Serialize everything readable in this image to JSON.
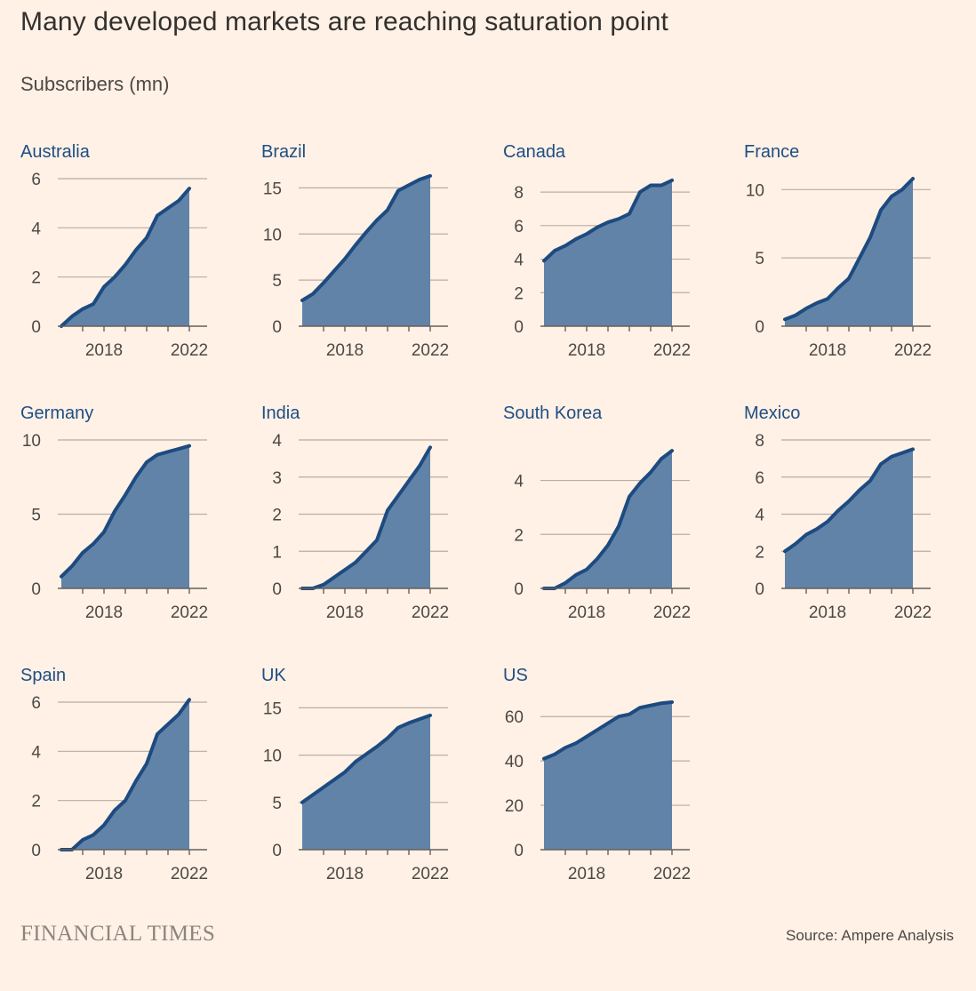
{
  "title": "Many developed markets are reaching saturation point",
  "subtitle": "Subscribers (mn)",
  "source": "Source: Ampere Analysis",
  "logo": "FINANCIAL TIMES",
  "colors": {
    "background": "#fff1e5",
    "area": "#6283a8",
    "line": "#1d4b80",
    "panel_title": "#1f4e86",
    "grid": "#b8ada5"
  },
  "chart_data": [
    {
      "type": "area",
      "title": "Australia",
      "x_ticks": [
        "2018",
        "2022"
      ],
      "y_ticks": [
        0,
        2,
        4,
        6
      ],
      "ylim": [
        0,
        6
      ],
      "x": [
        2016.0,
        2016.5,
        2017.0,
        2017.5,
        2018.0,
        2018.5,
        2019.0,
        2019.5,
        2020.0,
        2020.5,
        2021.0,
        2021.5,
        2022.0
      ],
      "values": [
        0.0,
        0.4,
        0.7,
        0.9,
        1.6,
        2.0,
        2.5,
        3.1,
        3.6,
        4.5,
        4.8,
        5.1,
        5.6
      ]
    },
    {
      "type": "area",
      "title": "Brazil",
      "x_ticks": [
        "2018",
        "2022"
      ],
      "y_ticks": [
        0,
        5,
        10,
        15
      ],
      "ylim": [
        0,
        16
      ],
      "x": [
        2016.0,
        2016.5,
        2017.0,
        2017.5,
        2018.0,
        2018.5,
        2019.0,
        2019.5,
        2020.0,
        2020.5,
        2021.0,
        2021.5,
        2022.0
      ],
      "values": [
        2.8,
        3.5,
        4.7,
        6.0,
        7.3,
        8.8,
        10.2,
        11.5,
        12.6,
        14.7,
        15.3,
        15.9,
        16.3
      ]
    },
    {
      "type": "area",
      "title": "Canada",
      "x_ticks": [
        "2018",
        "2022"
      ],
      "y_ticks": [
        0,
        2,
        4,
        6,
        8
      ],
      "ylim": [
        0,
        8.8
      ],
      "x": [
        2016.0,
        2016.5,
        2017.0,
        2017.5,
        2018.0,
        2018.5,
        2019.0,
        2019.5,
        2020.0,
        2020.5,
        2021.0,
        2021.5,
        2022.0
      ],
      "values": [
        3.9,
        4.5,
        4.8,
        5.2,
        5.5,
        5.9,
        6.2,
        6.4,
        6.7,
        8.0,
        8.4,
        8.4,
        8.7
      ]
    },
    {
      "type": "area",
      "title": "France",
      "x_ticks": [
        "2018",
        "2022"
      ],
      "y_ticks": [
        0,
        5,
        10
      ],
      "ylim": [
        0,
        10.8
      ],
      "x": [
        2016.0,
        2016.5,
        2017.0,
        2017.5,
        2018.0,
        2018.5,
        2019.0,
        2019.5,
        2020.0,
        2020.5,
        2021.0,
        2021.5,
        2022.0
      ],
      "values": [
        0.5,
        0.8,
        1.3,
        1.7,
        2.0,
        2.8,
        3.5,
        5.0,
        6.5,
        8.5,
        9.5,
        10.0,
        10.8
      ]
    },
    {
      "type": "area",
      "title": "Germany",
      "x_ticks": [
        "2018",
        "2022"
      ],
      "y_ticks": [
        0,
        5,
        10
      ],
      "ylim": [
        0,
        10
      ],
      "x": [
        2016.0,
        2016.5,
        2017.0,
        2017.5,
        2018.0,
        2018.5,
        2019.0,
        2019.5,
        2020.0,
        2020.5,
        2021.0,
        2021.5,
        2022.0
      ],
      "values": [
        0.8,
        1.5,
        2.4,
        3.0,
        3.8,
        5.2,
        6.3,
        7.5,
        8.5,
        9.0,
        9.2,
        9.4,
        9.6
      ]
    },
    {
      "type": "area",
      "title": "India",
      "x_ticks": [
        "2018",
        "2022"
      ],
      "y_ticks": [
        0,
        1,
        2,
        3,
        4
      ],
      "ylim": [
        0,
        4
      ],
      "x": [
        2016.0,
        2016.5,
        2017.0,
        2017.5,
        2018.0,
        2018.5,
        2019.0,
        2019.5,
        2020.0,
        2020.5,
        2021.0,
        2021.5,
        2022.0
      ],
      "values": [
        0.0,
        0.0,
        0.1,
        0.3,
        0.5,
        0.7,
        1.0,
        1.3,
        2.1,
        2.5,
        2.9,
        3.3,
        3.8
      ]
    },
    {
      "type": "area",
      "title": "South Korea",
      "x_ticks": [
        "2018",
        "2022"
      ],
      "y_ticks": [
        0,
        2,
        4
      ],
      "ylim": [
        0,
        5.5
      ],
      "x": [
        2016.0,
        2016.5,
        2017.0,
        2017.5,
        2018.0,
        2018.5,
        2019.0,
        2019.5,
        2020.0,
        2020.5,
        2021.0,
        2021.5,
        2022.0
      ],
      "values": [
        0.0,
        0.0,
        0.2,
        0.5,
        0.7,
        1.1,
        1.6,
        2.3,
        3.4,
        3.9,
        4.3,
        4.8,
        5.1
      ]
    },
    {
      "type": "area",
      "title": "Mexico",
      "x_ticks": [
        "2018",
        "2022"
      ],
      "y_ticks": [
        0,
        2,
        4,
        6,
        8
      ],
      "ylim": [
        0,
        8
      ],
      "x": [
        2016.0,
        2016.5,
        2017.0,
        2017.5,
        2018.0,
        2018.5,
        2019.0,
        2019.5,
        2020.0,
        2020.5,
        2021.0,
        2021.5,
        2022.0
      ],
      "values": [
        2.0,
        2.4,
        2.9,
        3.2,
        3.6,
        4.2,
        4.7,
        5.3,
        5.8,
        6.7,
        7.1,
        7.3,
        7.5
      ]
    },
    {
      "type": "area",
      "title": "Spain",
      "x_ticks": [
        "2018",
        "2022"
      ],
      "y_ticks": [
        0,
        2,
        4,
        6
      ],
      "ylim": [
        0,
        6
      ],
      "x": [
        2016.0,
        2016.5,
        2017.0,
        2017.5,
        2018.0,
        2018.5,
        2019.0,
        2019.5,
        2020.0,
        2020.5,
        2021.0,
        2021.5,
        2022.0
      ],
      "values": [
        0.0,
        0.0,
        0.4,
        0.6,
        1.0,
        1.6,
        2.0,
        2.8,
        3.5,
        4.7,
        5.1,
        5.5,
        6.1
      ]
    },
    {
      "type": "area",
      "title": "UK",
      "x_ticks": [
        "2018",
        "2022"
      ],
      "y_ticks": [
        0,
        5,
        10,
        15
      ],
      "ylim": [
        0,
        15.6
      ],
      "x": [
        2016.0,
        2016.5,
        2017.0,
        2017.5,
        2018.0,
        2018.5,
        2019.0,
        2019.5,
        2020.0,
        2020.5,
        2021.0,
        2021.5,
        2022.0
      ],
      "values": [
        5.0,
        5.8,
        6.6,
        7.4,
        8.2,
        9.3,
        10.1,
        10.9,
        11.8,
        12.9,
        13.4,
        13.8,
        14.2
      ]
    },
    {
      "type": "area",
      "title": "US",
      "x_ticks": [
        "2018",
        "2022"
      ],
      "y_ticks": [
        0,
        20,
        40,
        60
      ],
      "ylim": [
        0,
        66.5
      ],
      "x": [
        2016.0,
        2016.5,
        2017.0,
        2017.5,
        2018.0,
        2018.5,
        2019.0,
        2019.5,
        2020.0,
        2020.5,
        2021.0,
        2021.5,
        2022.0
      ],
      "values": [
        41,
        43,
        46,
        48,
        51,
        54,
        57,
        60,
        61,
        64,
        65,
        66,
        66.5
      ]
    }
  ]
}
